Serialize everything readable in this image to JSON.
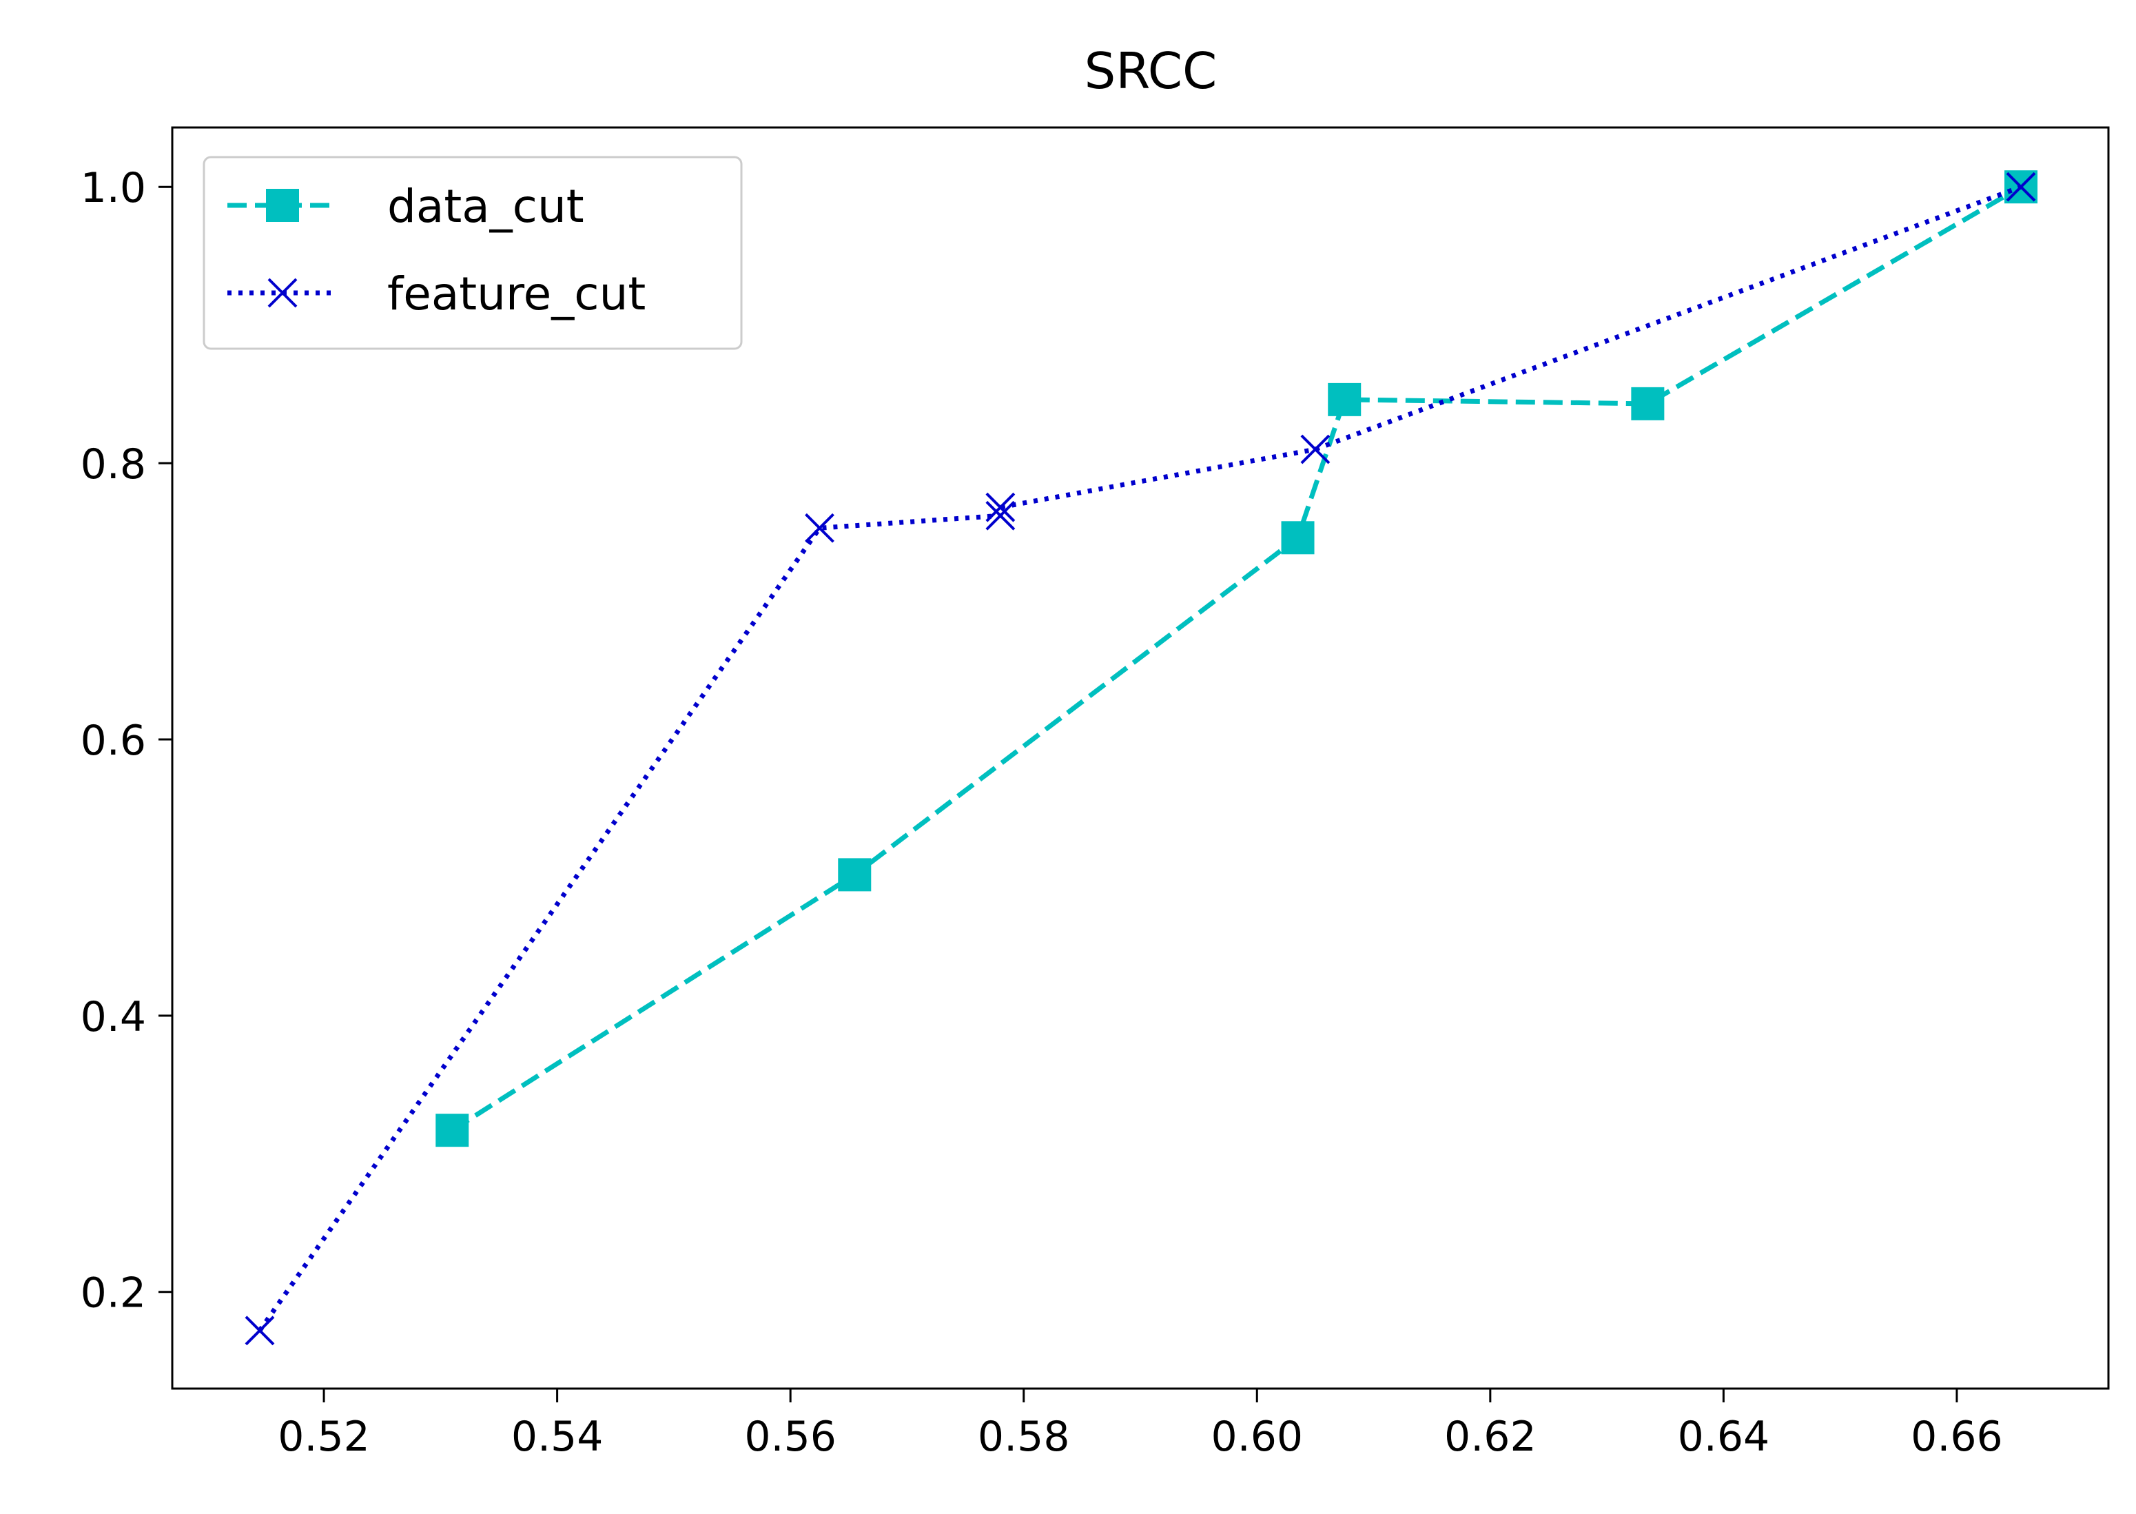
{
  "chart_data": {
    "type": "line",
    "title": "SRCC",
    "xlabel": "",
    "ylabel": "",
    "xlim": [
      0.507,
      0.673
    ],
    "ylim": [
      0.13,
      1.043
    ],
    "xticks": [
      0.52,
      0.54,
      0.56,
      0.58,
      0.6,
      0.62,
      0.64,
      0.66
    ],
    "xtick_labels": [
      "0.52",
      "0.54",
      "0.56",
      "0.58",
      "0.60",
      "0.62",
      "0.64",
      "0.66"
    ],
    "yticks": [
      0.2,
      0.4,
      0.6,
      0.8,
      1.0
    ],
    "ytick_labels": [
      "0.2",
      "0.4",
      "0.6",
      "0.8",
      "1.0"
    ],
    "grid": false,
    "legend_position": "upper-left",
    "series": [
      {
        "name": "data_cut",
        "color": "#00bfbf",
        "line_style": "dashed",
        "marker": "square",
        "x": [
          0.531,
          0.5655,
          0.6035,
          0.6075,
          0.6335,
          0.6655
        ],
        "y": [
          0.317,
          0.502,
          0.746,
          0.846,
          0.843,
          1.0
        ]
      },
      {
        "name": "feature_cut",
        "color": "#0000cc",
        "line_style": "dotted",
        "marker": "x",
        "x": [
          0.5145,
          0.5625,
          0.578,
          0.578,
          0.605,
          0.6655
        ],
        "y": [
          0.172,
          0.753,
          0.762,
          0.768,
          0.81,
          1.0
        ]
      }
    ]
  }
}
